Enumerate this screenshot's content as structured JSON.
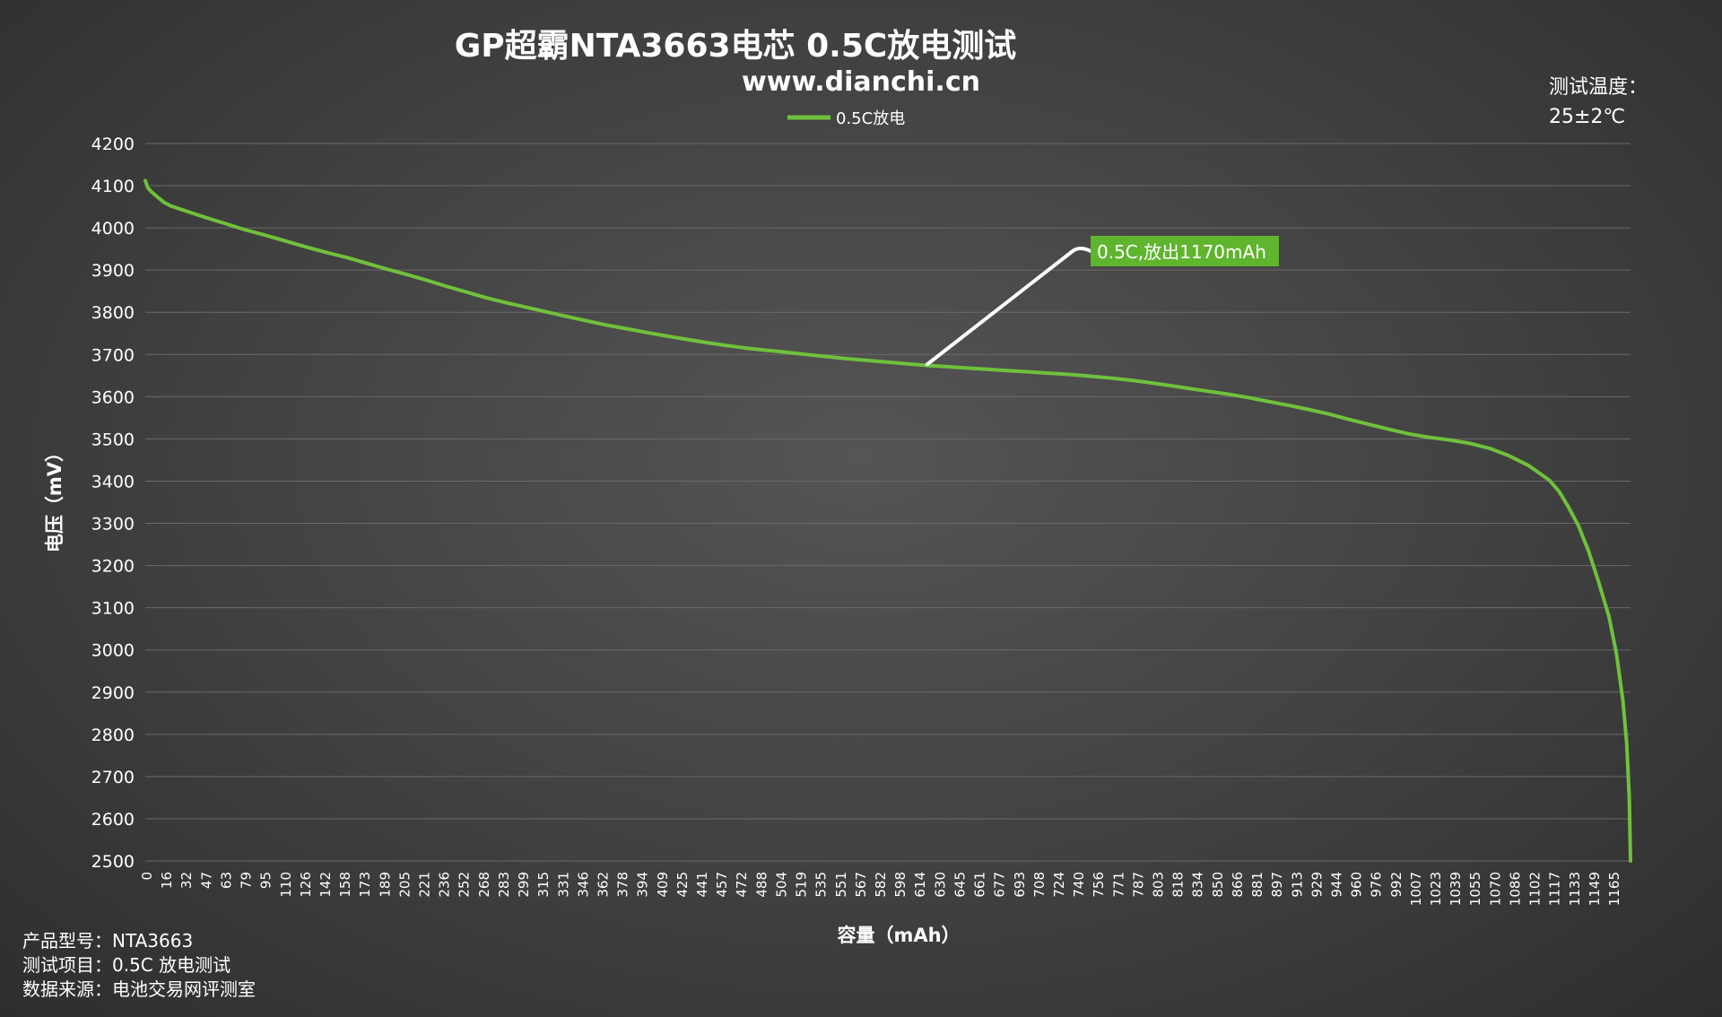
{
  "chart_data": {
    "type": "line",
    "title": "GP超霸NTA3663电芯 0.5C放电测试",
    "subtitle": "www.dianchi.cn",
    "xlabel": "容量（mAh）",
    "ylabel": "电压（mV）",
    "xlim": [
      0,
      1170
    ],
    "ylim": [
      2500,
      4200
    ],
    "y_ticks": [
      4200,
      4100,
      4000,
      3900,
      3800,
      3700,
      3600,
      3500,
      3400,
      3300,
      3200,
      3100,
      3000,
      2900,
      2800,
      2700,
      2600,
      2500
    ],
    "x_ticks": [
      0,
      16,
      32,
      47,
      63,
      79,
      95,
      110,
      126,
      142,
      158,
      173,
      189,
      205,
      221,
      236,
      252,
      268,
      283,
      299,
      315,
      331,
      346,
      362,
      378,
      394,
      409,
      425,
      441,
      457,
      472,
      488,
      504,
      519,
      535,
      551,
      567,
      582,
      598,
      614,
      630,
      645,
      661,
      677,
      693,
      708,
      724,
      740,
      756,
      771,
      787,
      803,
      818,
      834,
      850,
      866,
      881,
      897,
      913,
      929,
      944,
      960,
      976,
      992,
      1007,
      1023,
      1039,
      1055,
      1070,
      1086,
      1102,
      1117,
      1133,
      1149,
      1165
    ],
    "grid": true,
    "legend": "top-center",
    "series": [
      {
        "name": "0.5C放电",
        "color": "#6fc13b",
        "points": [
          [
            0,
            4112
          ],
          [
            2,
            4095
          ],
          [
            5,
            4085
          ],
          [
            10,
            4072
          ],
          [
            15,
            4060
          ],
          [
            20,
            4052
          ],
          [
            30,
            4042
          ],
          [
            47,
            4025
          ],
          [
            63,
            4010
          ],
          [
            79,
            3995
          ],
          [
            95,
            3982
          ],
          [
            110,
            3969
          ],
          [
            126,
            3955
          ],
          [
            142,
            3942
          ],
          [
            158,
            3930
          ],
          [
            173,
            3917
          ],
          [
            189,
            3903
          ],
          [
            205,
            3890
          ],
          [
            221,
            3876
          ],
          [
            236,
            3862
          ],
          [
            252,
            3848
          ],
          [
            268,
            3834
          ],
          [
            283,
            3823
          ],
          [
            299,
            3812
          ],
          [
            315,
            3801
          ],
          [
            331,
            3790
          ],
          [
            346,
            3780
          ],
          [
            362,
            3770
          ],
          [
            378,
            3761
          ],
          [
            394,
            3752
          ],
          [
            409,
            3744
          ],
          [
            425,
            3736
          ],
          [
            441,
            3728
          ],
          [
            457,
            3721
          ],
          [
            472,
            3715
          ],
          [
            488,
            3710
          ],
          [
            504,
            3705
          ],
          [
            519,
            3700
          ],
          [
            535,
            3695
          ],
          [
            551,
            3690
          ],
          [
            567,
            3686
          ],
          [
            582,
            3682
          ],
          [
            598,
            3678
          ],
          [
            614,
            3674
          ],
          [
            630,
            3671
          ],
          [
            645,
            3668
          ],
          [
            661,
            3665
          ],
          [
            677,
            3662
          ],
          [
            693,
            3659
          ],
          [
            708,
            3656
          ],
          [
            724,
            3653
          ],
          [
            740,
            3649
          ],
          [
            756,
            3645
          ],
          [
            771,
            3640
          ],
          [
            787,
            3634
          ],
          [
            803,
            3627
          ],
          [
            818,
            3620
          ],
          [
            834,
            3613
          ],
          [
            850,
            3606
          ],
          [
            866,
            3598
          ],
          [
            881,
            3589
          ],
          [
            897,
            3580
          ],
          [
            913,
            3570
          ],
          [
            929,
            3559
          ],
          [
            944,
            3547
          ],
          [
            960,
            3535
          ],
          [
            976,
            3523
          ],
          [
            992,
            3512
          ],
          [
            1007,
            3504
          ],
          [
            1023,
            3498
          ],
          [
            1039,
            3490
          ],
          [
            1055,
            3478
          ],
          [
            1070,
            3461
          ],
          [
            1086,
            3437
          ],
          [
            1102,
            3403
          ],
          [
            1110,
            3375
          ],
          [
            1117,
            3340
          ],
          [
            1125,
            3295
          ],
          [
            1133,
            3235
          ],
          [
            1140,
            3170
          ],
          [
            1149,
            3080
          ],
          [
            1155,
            2990
          ],
          [
            1160,
            2880
          ],
          [
            1163,
            2780
          ],
          [
            1165,
            2650
          ],
          [
            1166,
            2500
          ]
        ]
      }
    ],
    "annotation": {
      "text": "0.5C,放出1170mAh",
      "x": 614,
      "y": 3677,
      "bg": "#5fb52d"
    }
  },
  "info": {
    "model": "产品型号：NTA3663",
    "test_item": "测试项目：0.5C 放电测试",
    "source": "数据来源：电池交易网评测室"
  },
  "temperature": {
    "label": "测试温度：",
    "value": "25±2℃"
  }
}
